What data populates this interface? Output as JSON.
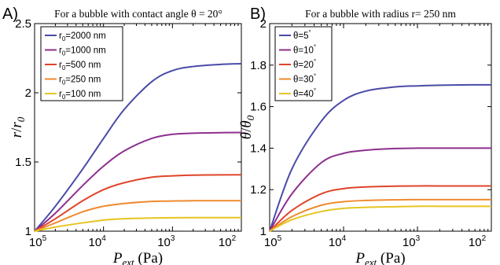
{
  "chart_data": [
    {
      "type": "line",
      "panel": "A)",
      "title": "For a bubble with contact angle θ = 20°",
      "xlabel": "P_ext (Pa)",
      "ylabel": "r/r_0",
      "xscale": "log",
      "xreversed": true,
      "xlim": [
        100000,
        100
      ],
      "ylim": [
        1,
        2.5
      ],
      "xticks": [
        {
          "value": 100000,
          "base": "10",
          "exp": "5"
        },
        {
          "value": 10000,
          "base": "10",
          "exp": "4"
        },
        {
          "value": 1000,
          "base": "10",
          "exp": "3"
        },
        {
          "value": 100,
          "base": "10",
          "exp": "2"
        }
      ],
      "yticks": [
        {
          "value": 1,
          "label": "1"
        },
        {
          "value": 1.5,
          "label": "1.5"
        },
        {
          "value": 2,
          "label": "2"
        },
        {
          "value": 2.5,
          "label": "2.5"
        }
      ],
      "legend_position": "top-left",
      "series": [
        {
          "name_pre": "r",
          "name_sub": "0",
          "name_post": "=2000 nm",
          "color": "#4a4aa8",
          "x": [
            100000,
            50000,
            20000,
            10000,
            5000,
            2000,
            1000,
            500,
            200,
            100
          ],
          "y": [
            1.0,
            1.18,
            1.45,
            1.67,
            1.88,
            2.08,
            2.16,
            2.19,
            2.205,
            2.21
          ]
        },
        {
          "name_pre": "r",
          "name_sub": "0",
          "name_post": "=1000 nm",
          "color": "#8e2f8e",
          "x": [
            100000,
            50000,
            20000,
            10000,
            5000,
            2000,
            1000,
            500,
            200,
            100
          ],
          "y": [
            1.0,
            1.13,
            1.33,
            1.47,
            1.58,
            1.67,
            1.7,
            1.708,
            1.712,
            1.713
          ]
        },
        {
          "name_pre": "r",
          "name_sub": "0",
          "name_post": "=500 nm",
          "color": "#e0442a",
          "x": [
            100000,
            50000,
            20000,
            10000,
            5000,
            2000,
            1000,
            500,
            200,
            100
          ],
          "y": [
            1.0,
            1.09,
            1.22,
            1.3,
            1.35,
            1.39,
            1.4,
            1.405,
            1.407,
            1.408
          ]
        },
        {
          "name_pre": "r",
          "name_sub": "0",
          "name_post": "=250 nm",
          "color": "#ef8a2e",
          "x": [
            100000,
            50000,
            20000,
            10000,
            5000,
            2000,
            1000,
            500,
            200,
            100
          ],
          "y": [
            1.0,
            1.06,
            1.14,
            1.18,
            1.2,
            1.215,
            1.218,
            1.22,
            1.22,
            1.22
          ]
        },
        {
          "name_pre": "r",
          "name_sub": "0",
          "name_post": "=100 nm",
          "color": "#e6c421",
          "x": [
            100000,
            50000,
            20000,
            10000,
            5000,
            2000,
            1000,
            500,
            200,
            100
          ],
          "y": [
            1.0,
            1.03,
            1.06,
            1.08,
            1.09,
            1.095,
            1.097,
            1.098,
            1.098,
            1.098
          ]
        }
      ]
    },
    {
      "type": "line",
      "panel": "B)",
      "title": "For a bubble with radius r= 250 nm",
      "xlabel": "P_ext (Pa)",
      "ylabel": "θ/θ_0",
      "xscale": "log",
      "xreversed": true,
      "xlim": [
        100000,
        100
      ],
      "ylim": [
        1,
        2
      ],
      "xticks": [
        {
          "value": 100000,
          "base": "10",
          "exp": "5"
        },
        {
          "value": 10000,
          "base": "10",
          "exp": "4"
        },
        {
          "value": 1000,
          "base": "10",
          "exp": "3"
        },
        {
          "value": 100,
          "base": "10",
          "exp": "2"
        }
      ],
      "yticks": [
        {
          "value": 1,
          "label": "1"
        },
        {
          "value": 1.2,
          "label": "1.2"
        },
        {
          "value": 1.4,
          "label": "1.4"
        },
        {
          "value": 1.6,
          "label": "1.6"
        },
        {
          "value": 1.8,
          "label": "1.8"
        },
        {
          "value": 2,
          "label": "2"
        }
      ],
      "legend_position": "top-left",
      "series": [
        {
          "name_pre": "θ=5",
          "name_sub": "",
          "name_post": "°",
          "color": "#4a4aa8",
          "x": [
            100000,
            50000,
            20000,
            10000,
            5000,
            2000,
            1000,
            500,
            200,
            100
          ],
          "y": [
            1.0,
            1.3,
            1.53,
            1.63,
            1.675,
            1.695,
            1.7,
            1.703,
            1.705,
            1.705
          ]
        },
        {
          "name_pre": "θ=10",
          "name_sub": "",
          "name_post": "°",
          "color": "#8e2f8e",
          "x": [
            100000,
            50000,
            20000,
            10000,
            5000,
            2000,
            1000,
            500,
            200,
            100
          ],
          "y": [
            1.0,
            1.18,
            1.33,
            1.375,
            1.39,
            1.398,
            1.4,
            1.4,
            1.4,
            1.4
          ]
        },
        {
          "name_pre": "θ=20",
          "name_sub": "",
          "name_post": "°",
          "color": "#e0442a",
          "x": [
            100000,
            50000,
            20000,
            10000,
            5000,
            2000,
            1000,
            500,
            200,
            100
          ],
          "y": [
            1.0,
            1.1,
            1.18,
            1.205,
            1.213,
            1.217,
            1.218,
            1.218,
            1.218,
            1.218
          ]
        },
        {
          "name_pre": "θ=30",
          "name_sub": "",
          "name_post": "°",
          "color": "#ef8a2e",
          "x": [
            100000,
            50000,
            20000,
            10000,
            5000,
            2000,
            1000,
            500,
            200,
            100
          ],
          "y": [
            1.0,
            1.07,
            1.125,
            1.142,
            1.148,
            1.151,
            1.152,
            1.152,
            1.152,
            1.152
          ]
        },
        {
          "name_pre": "θ=40",
          "name_sub": "",
          "name_post": "°",
          "color": "#e6c421",
          "x": [
            100000,
            50000,
            20000,
            10000,
            5000,
            2000,
            1000,
            500,
            200,
            100
          ],
          "y": [
            1.0,
            1.055,
            1.095,
            1.11,
            1.115,
            1.118,
            1.12,
            1.12,
            1.12,
            1.12
          ]
        }
      ]
    }
  ]
}
